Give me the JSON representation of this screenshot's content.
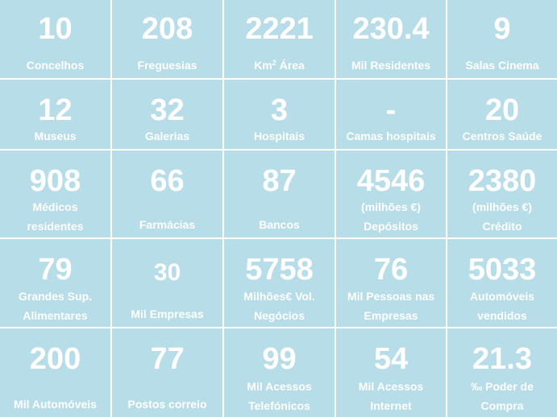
{
  "tiles": [
    {
      "value": "10",
      "label": "Concelhos"
    },
    {
      "value": "208",
      "label": "Freguesias"
    },
    {
      "value": "2221",
      "label": "Km² Área"
    },
    {
      "value": "230.4",
      "label": "Mil Residentes"
    },
    {
      "value": "9",
      "label": "Salas Cinema"
    },
    {
      "value": "12",
      "label": "Museus"
    },
    {
      "value": "32",
      "label": "Galerias"
    },
    {
      "value": "3",
      "label": "Hospitais"
    },
    {
      "value": "-",
      "label": "Camas hospitais"
    },
    {
      "value": "20",
      "label": "Centros Saúde"
    },
    {
      "value": "908",
      "label": "Médicos residentes"
    },
    {
      "value": "66",
      "label": "Farmácias"
    },
    {
      "value": "87",
      "label": "Bancos"
    },
    {
      "value": "4546",
      "label": "(milhões €) Depósitos"
    },
    {
      "value": "2380",
      "label": "(milhões €) Crédito"
    },
    {
      "value": "79",
      "label": "Grandes Sup. Alimentares"
    },
    {
      "value": "30",
      "label": "Mil Empresas"
    },
    {
      "value": "5758",
      "label": "Milhões€ Vol. Negócios"
    },
    {
      "value": "76",
      "label": "Mil Pessoas nas Empresas"
    },
    {
      "value": "5033",
      "label": "Automóveis vendidos"
    },
    {
      "value": "200",
      "label": "Mil Automóveis"
    },
    {
      "value": "77",
      "label": "Postos correio"
    },
    {
      "value": "99",
      "label": "Mil Acessos Telefónicos"
    },
    {
      "value": "54",
      "label": "Mil Acessos Internet"
    },
    {
      "value": "21.3",
      "label": "‰ Poder de Compra"
    }
  ],
  "colors": {
    "tile_bg": "#b7dde8",
    "text": "#ffffff",
    "border": "#ffffff"
  }
}
